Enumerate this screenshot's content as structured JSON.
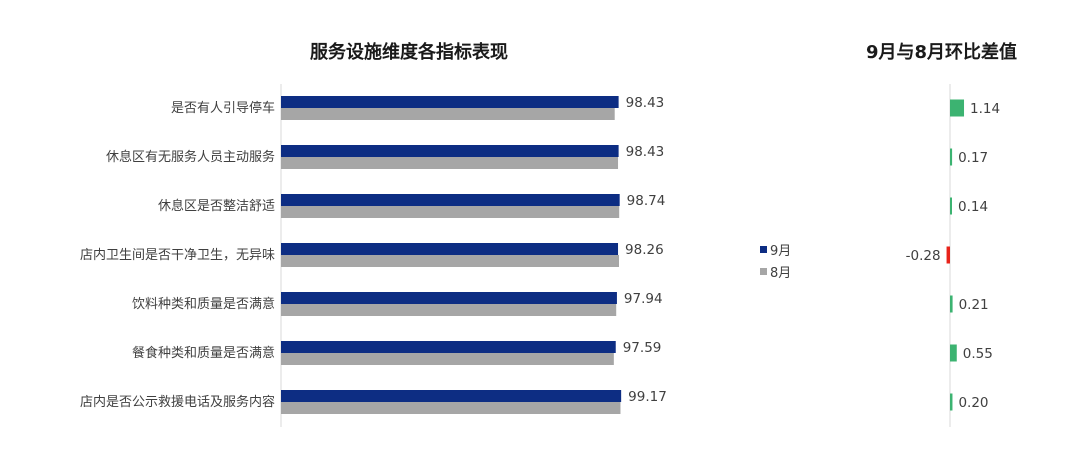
{
  "chart_data": [
    {
      "type": "bar",
      "title": "服务设施维度各指标表现",
      "categories": [
        "是否有人引导停车",
        "休息区有无服务人员主动服务",
        "休息区是否整洁舒适",
        "店内卫生间是否干净卫生，无异味",
        "饮料种类和质量是否满意",
        "餐食种类和质量是否满意",
        "店内是否公示救援电话及服务内容"
      ],
      "series": [
        {
          "name": "9月",
          "color": "#0d2d83",
          "values": [
            98.43,
            98.43,
            98.74,
            98.26,
            97.94,
            97.59,
            99.17
          ]
        },
        {
          "name": "8月",
          "color": "#a6a6a6",
          "values": [
            97.29,
            98.26,
            98.6,
            98.54,
            97.73,
            97.04,
            98.97
          ]
        }
      ],
      "value_labels": [
        "98.43",
        "98.43",
        "98.74",
        "98.26",
        "97.94",
        "97.59",
        "99.17"
      ],
      "legend_position": "right"
    },
    {
      "type": "bar",
      "title": "9月与8月环比差值",
      "categories": [
        "是否有人引导停车",
        "休息区有无服务人员主动服务",
        "休息区是否整洁舒适",
        "店内卫生间是否干净卫生，无异味",
        "饮料种类和质量是否满意",
        "餐食种类和质量是否满意",
        "店内是否公示救援电话及服务内容"
      ],
      "values": [
        1.14,
        0.17,
        0.14,
        -0.28,
        0.21,
        0.55,
        0.2
      ],
      "value_labels": [
        "1.14",
        "0.17",
        "0.14",
        "-0.28",
        "0.21",
        "0.55",
        "0.20"
      ],
      "positive_color": "#3cb371",
      "negative_color": "#e8231a"
    }
  ]
}
